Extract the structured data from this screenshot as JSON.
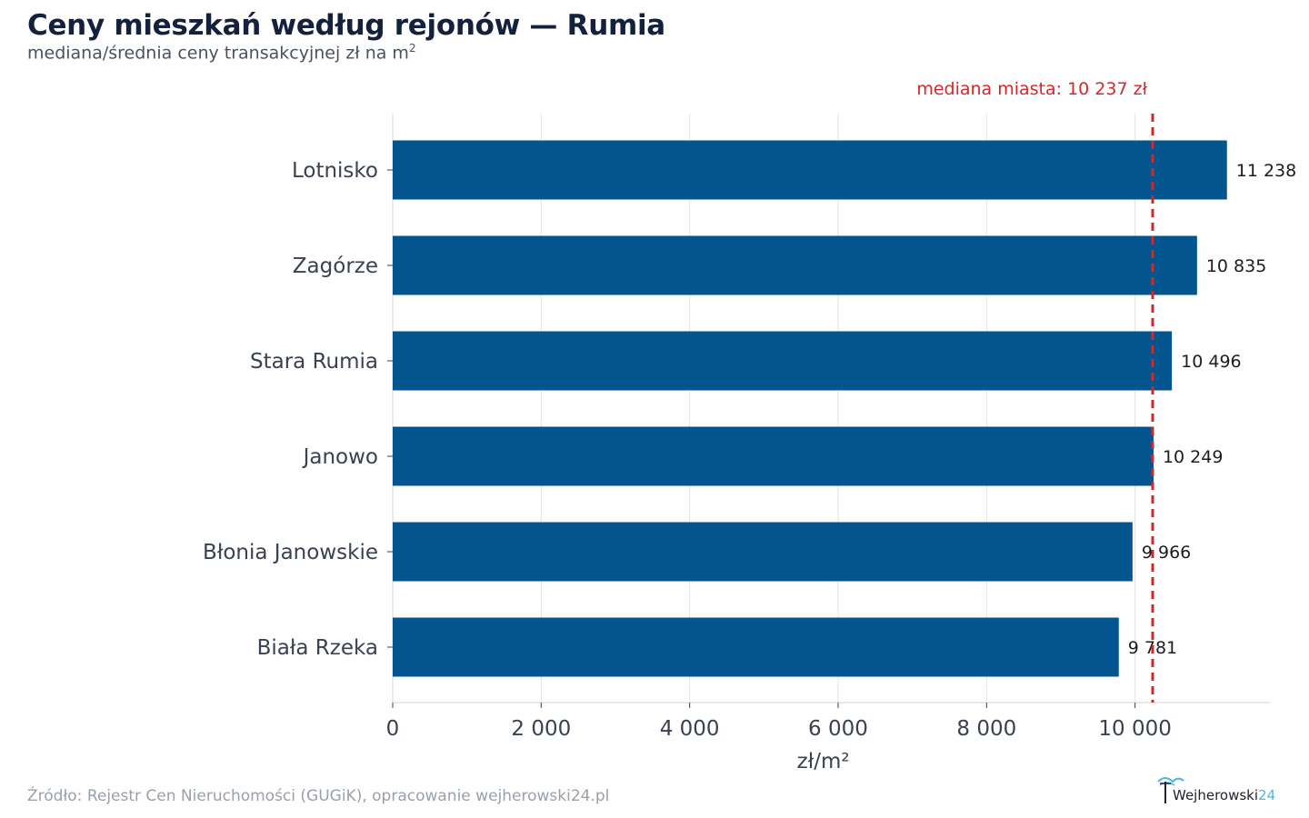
{
  "title": "Ceny mieszkań według rejonów — Rumia",
  "subtitle_main": "mediana/średnia ceny transakcyjnej zł na m",
  "subtitle_sup": "2",
  "source": "Źródło: Rejestr Cen Nieruchomości (GUGiK), opracowanie wejherowski24.pl",
  "logo": {
    "main": "Wejherowski",
    "accent": "24"
  },
  "colors": {
    "bar": "#03558f",
    "median_line": "#d62728",
    "grid": "#e3e3e3",
    "axis_text": "#3a4150"
  },
  "chart_data": {
    "type": "bar",
    "orientation": "horizontal",
    "categories": [
      "Lotnisko",
      "Zagórze",
      "Stara Rumia",
      "Janowo",
      "Błonia Janowskie",
      "Biała Rzeka"
    ],
    "values": [
      11238,
      10835,
      10496,
      10249,
      9966,
      9781
    ],
    "value_labels": [
      "11 238",
      "10 835",
      "10 496",
      "10 249",
      "9 966",
      "9 781"
    ],
    "xlabel": "zł/m²",
    "ylabel": "",
    "xlim": [
      0,
      11800
    ],
    "xticks": [
      0,
      2000,
      4000,
      6000,
      8000,
      10000
    ],
    "xtick_labels": [
      "0",
      "2 000",
      "4 000",
      "6 000",
      "8 000",
      "10 000"
    ],
    "grid": true,
    "reference_line": {
      "value": 10237,
      "label": "mediana miasta: 10 237 zł"
    }
  }
}
